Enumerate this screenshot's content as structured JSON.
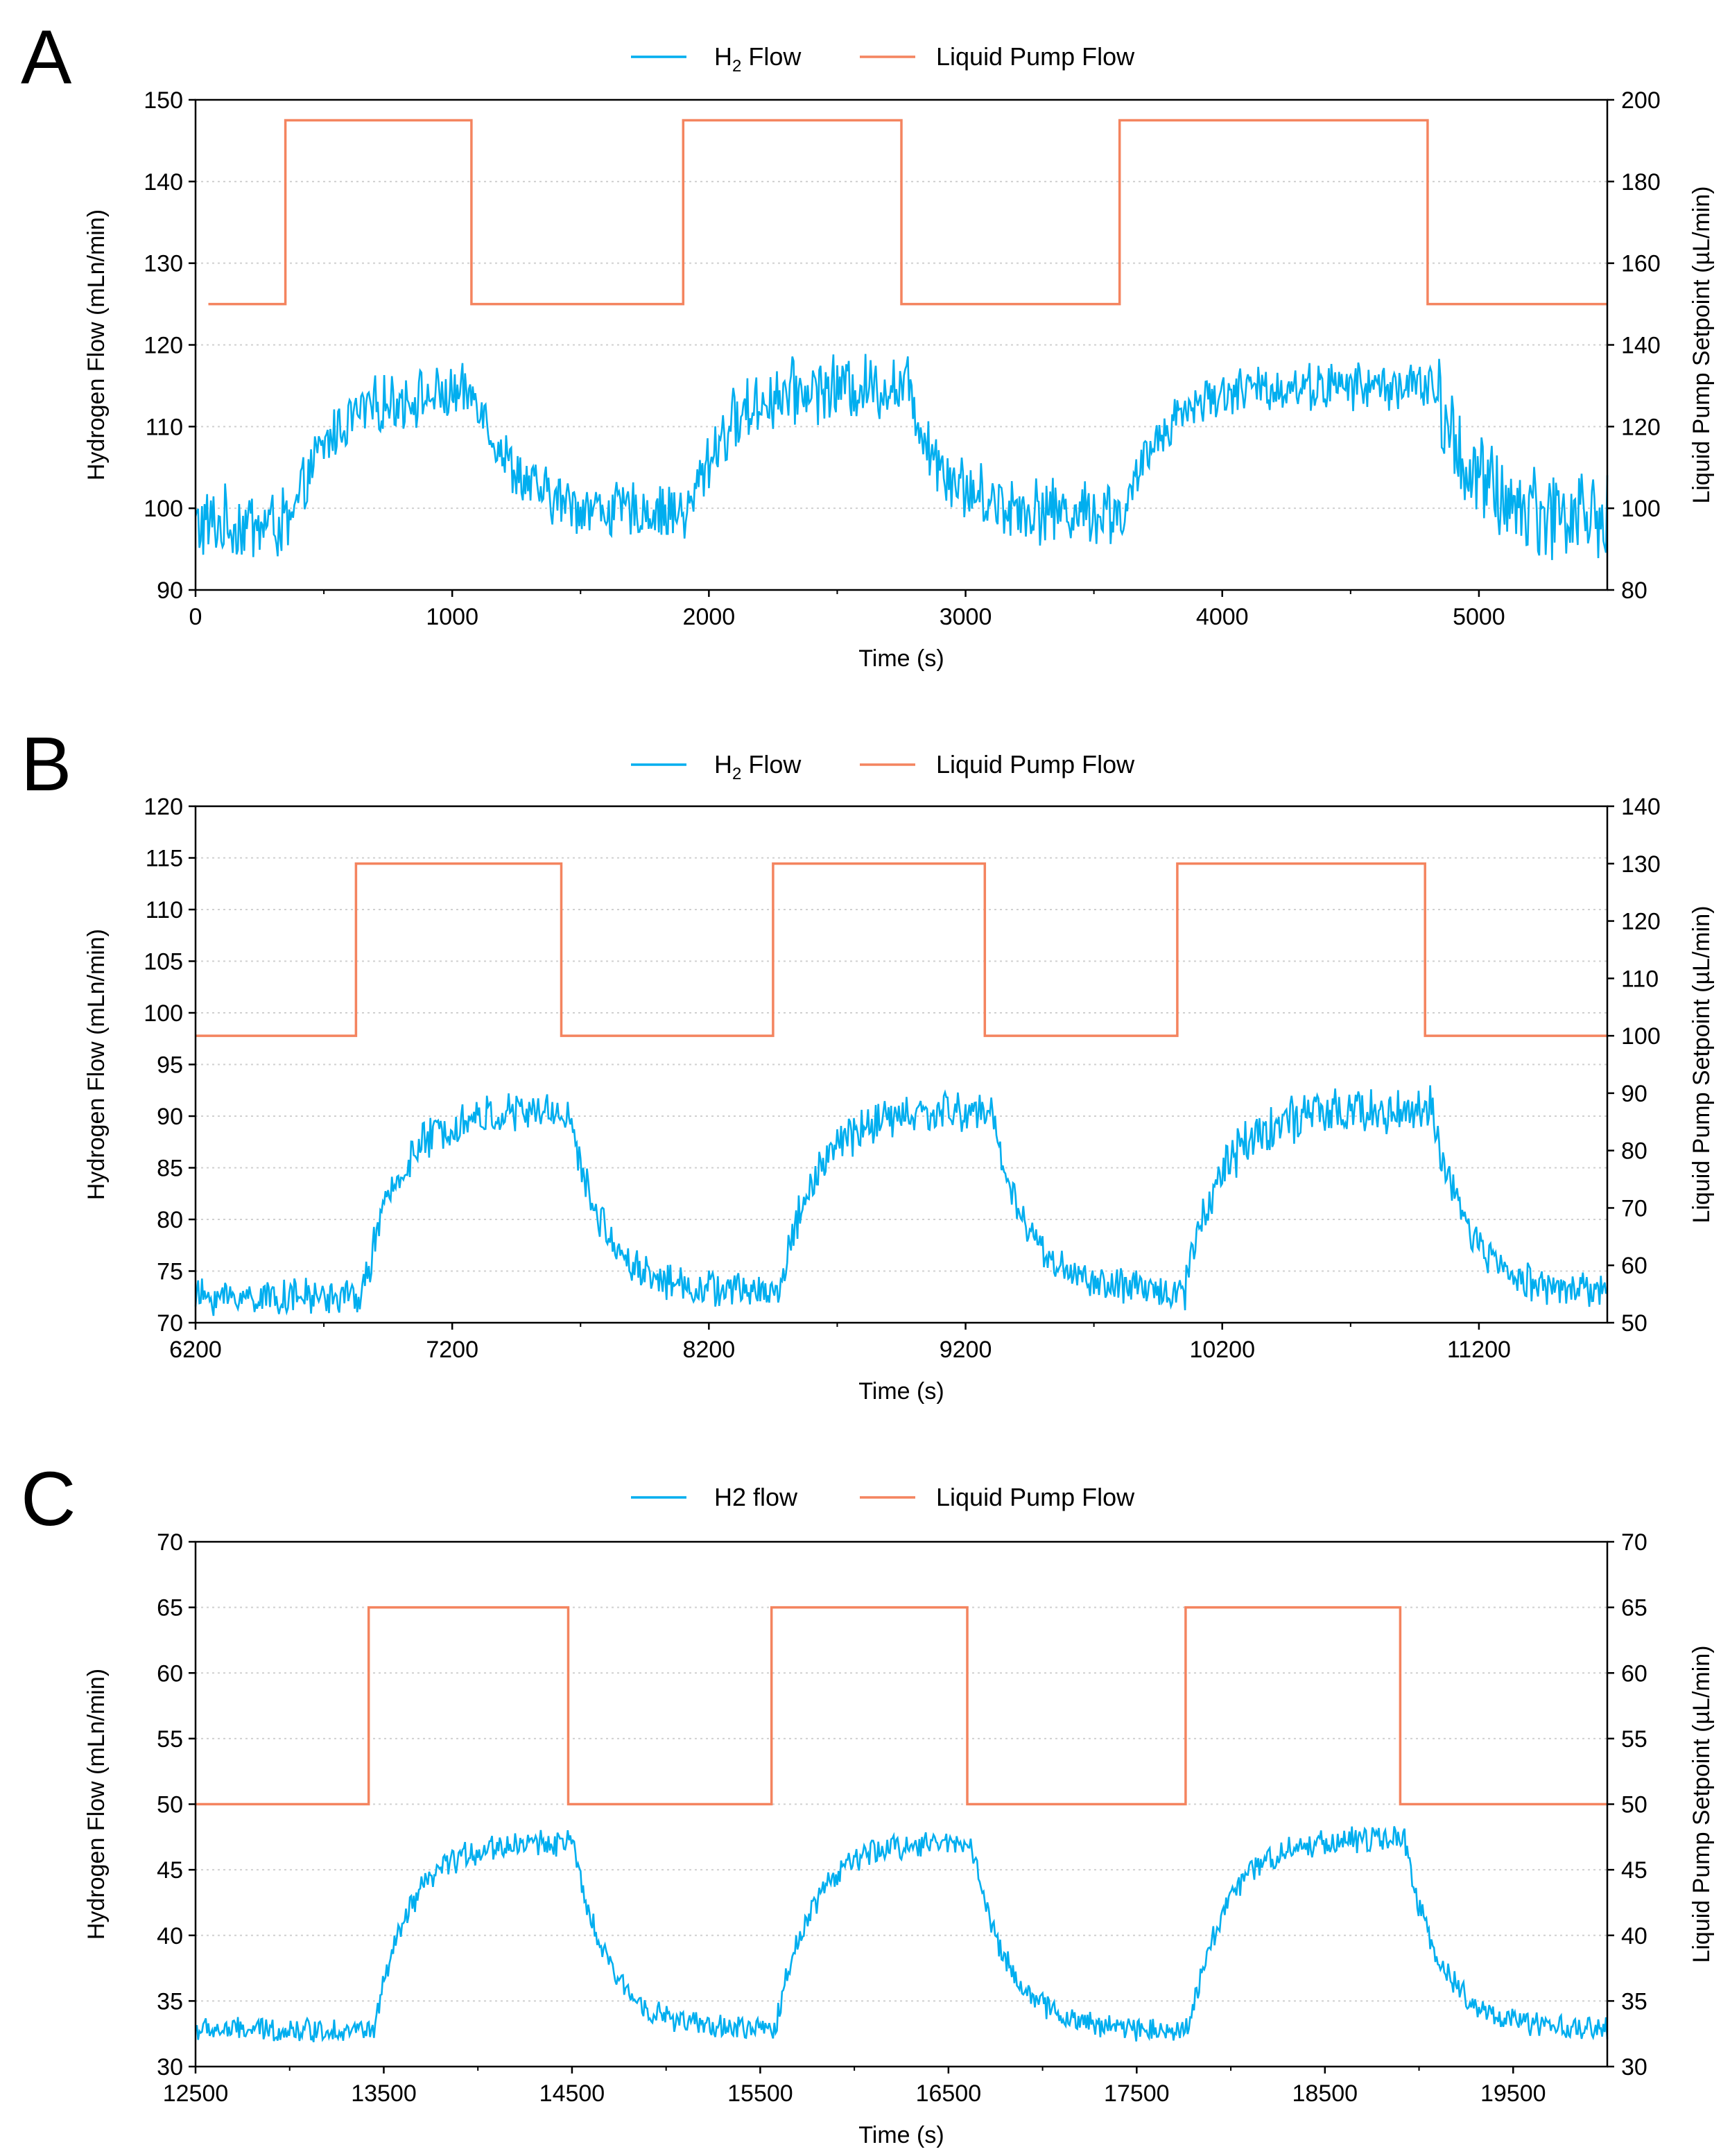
{
  "colors": {
    "h2": "#00AEEF",
    "pump": "#F4845F",
    "grid": "#D0D0D0",
    "axis": "#000000"
  },
  "chart_data": [
    {
      "panel": "A",
      "type": "line",
      "legend": [
        "H2 Flow",
        "Liquid Pump Flow"
      ],
      "legend_h2": {
        "main": "H",
        "sub": "2",
        "rest": " Flow"
      },
      "xlabel": "Time (s)",
      "ylabel": "Hydrogen Flow (mLn/min)",
      "y2label": "Liquid Pump Setpoint (µL/min)",
      "xlim": [
        0,
        5500
      ],
      "ylim": [
        90,
        150
      ],
      "y2lim": [
        80,
        200
      ],
      "xticks": [
        0,
        1000,
        2000,
        3000,
        4000,
        5000
      ],
      "xtick_labels": [
        "0",
        "1000",
        "2000",
        "3000",
        "4000",
        "5000"
      ],
      "yticks": [
        90,
        100,
        110,
        120,
        130,
        140,
        150
      ],
      "ytick_labels": [
        "90",
        "100",
        "110",
        "120",
        "130",
        "140",
        "150"
      ],
      "y2ticks": [
        80,
        100,
        120,
        140,
        160,
        180,
        200
      ],
      "y2tick_labels": [
        "80",
        "100",
        "120",
        "140",
        "160",
        "180",
        "200"
      ],
      "series": [
        {
          "name": "Liquid Pump Flow",
          "axis": "right",
          "kind": "step",
          "x": [
            50,
            350,
            350,
            1075,
            1075,
            1900,
            1900,
            2750,
            2750,
            3600,
            3600,
            4800,
            4800,
            5500
          ],
          "y": [
            150,
            150,
            195,
            195,
            150,
            150,
            195,
            195,
            150,
            150,
            195,
            195,
            150,
            150
          ]
        },
        {
          "name": "H2 Flow",
          "axis": "left",
          "kind": "noisy_step",
          "x_start": 0,
          "x_end": 5500,
          "levels": [
            {
              "x": 0,
              "mean": 98,
              "noise": 4
            },
            {
              "x": 375,
              "mean": 114,
              "noise": 3
            },
            {
              "x": 1100,
              "mean": 99.5,
              "noise": 3
            },
            {
              "x": 1925,
              "mean": 115,
              "noise": 3.5
            },
            {
              "x": 2775,
              "mean": 99.5,
              "noise": 3.5
            },
            {
              "x": 3625,
              "mean": 115,
              "noise": 2.5
            },
            {
              "x": 4825,
              "mean": 99,
              "noise": 5
            }
          ]
        }
      ]
    },
    {
      "panel": "B",
      "type": "line",
      "legend": [
        "H2 Flow",
        "Liquid Pump Flow"
      ],
      "legend_h2": {
        "main": "H",
        "sub": "2",
        "rest": " Flow"
      },
      "xlabel": "Time (s)",
      "ylabel": "Hydrogen Flow (mLn/min)",
      "y2label": "Liquid Pump Setpoint (µL/min)",
      "xlim": [
        6200,
        11700
      ],
      "ylim": [
        70,
        120
      ],
      "y2lim": [
        50,
        140
      ],
      "xticks": [
        6200,
        7200,
        8200,
        9200,
        10200,
        11200
      ],
      "xtick_labels": [
        "6200",
        "7200",
        "8200",
        "9200",
        "10200",
        "11200"
      ],
      "yticks": [
        70,
        75,
        80,
        85,
        90,
        95,
        100,
        105,
        110,
        115,
        120
      ],
      "ytick_labels": [
        "70",
        "75",
        "80",
        "85",
        "90",
        "95",
        "100",
        "105",
        "110",
        "115",
        "120"
      ],
      "y2ticks": [
        50,
        60,
        70,
        80,
        90,
        100,
        110,
        120,
        130,
        140
      ],
      "y2tick_labels": [
        "50",
        "60",
        "70",
        "80",
        "90",
        "100",
        "110",
        "120",
        "130",
        "140"
      ],
      "series": [
        {
          "name": "Liquid Pump Flow",
          "axis": "right",
          "kind": "step",
          "x": [
            6200,
            6825,
            6825,
            7625,
            7625,
            8450,
            8450,
            9275,
            9275,
            10025,
            10025,
            10990,
            10990,
            11700
          ],
          "y": [
            100,
            100,
            130,
            130,
            100,
            100,
            130,
            130,
            100,
            100,
            130,
            130,
            100,
            100
          ]
        },
        {
          "name": "H2 Flow",
          "axis": "left",
          "kind": "noisy_step",
          "x_start": 6200,
          "x_end": 11700,
          "levels": [
            {
              "x": 6200,
              "mean": 72.5,
              "noise": 1.5
            },
            {
              "x": 6850,
              "mean": 90.5,
              "noise": 1.8
            },
            {
              "x": 7650,
              "mean": 73,
              "noise": 1.5
            },
            {
              "x": 8475,
              "mean": 90.5,
              "noise": 1.8
            },
            {
              "x": 9300,
              "mean": 73,
              "noise": 1.5
            },
            {
              "x": 10050,
              "mean": 90.5,
              "noise": 2
            },
            {
              "x": 11015,
              "mean": 73,
              "noise": 1.6
            }
          ]
        }
      ]
    },
    {
      "panel": "C",
      "type": "line",
      "legend": [
        "H2 flow",
        "Liquid Pump Flow"
      ],
      "legend_h2": {
        "main": "H2 flow",
        "sub": "",
        "rest": ""
      },
      "xlabel": "Time (s)",
      "ylabel": "Hydrogen Flow (mLn/min)",
      "y2label": "Liquid Pump Setpoint (µL/min)",
      "xlim": [
        12500,
        20000
      ],
      "ylim": [
        30,
        70
      ],
      "y2lim": [
        30,
        70
      ],
      "xticks": [
        12500,
        13500,
        14500,
        15500,
        16500,
        17500,
        18500,
        19500
      ],
      "xtick_labels": [
        "12500",
        "13500",
        "14500",
        "15500",
        "16500",
        "17500",
        "18500",
        "19500"
      ],
      "yticks": [
        30,
        35,
        40,
        45,
        50,
        55,
        60,
        65,
        70
      ],
      "ytick_labels": [
        "30",
        "35",
        "40",
        "45",
        "50",
        "55",
        "60",
        "65",
        "70"
      ],
      "y2ticks": [
        30,
        35,
        40,
        45,
        50,
        55,
        60,
        65,
        70
      ],
      "y2tick_labels": [
        "30",
        "35",
        "40",
        "45",
        "50",
        "55",
        "60",
        "65",
        "70"
      ],
      "series": [
        {
          "name": "Liquid Pump Flow",
          "axis": "right",
          "kind": "step",
          "x": [
            12500,
            13420,
            13420,
            14480,
            14480,
            15560,
            15560,
            16600,
            16600,
            17760,
            17760,
            18900,
            18900,
            20000
          ],
          "y": [
            50,
            50,
            65,
            65,
            50,
            50,
            65,
            65,
            50,
            50,
            65,
            65,
            50,
            50
          ]
        },
        {
          "name": "H2 flow",
          "axis": "left",
          "kind": "noisy_step",
          "x_start": 12500,
          "x_end": 20000,
          "levels": [
            {
              "x": 12500,
              "mean": 32.8,
              "noise": 0.8
            },
            {
              "x": 13450,
              "mean": 47.2,
              "noise": 0.9
            },
            {
              "x": 14500,
              "mean": 32.8,
              "noise": 0.8
            },
            {
              "x": 15580,
              "mean": 47.2,
              "noise": 0.9
            },
            {
              "x": 16620,
              "mean": 32.8,
              "noise": 0.8
            },
            {
              "x": 17780,
              "mean": 47.4,
              "noise": 0.9
            },
            {
              "x": 18920,
              "mean": 32.8,
              "noise": 0.8
            }
          ]
        }
      ]
    }
  ]
}
